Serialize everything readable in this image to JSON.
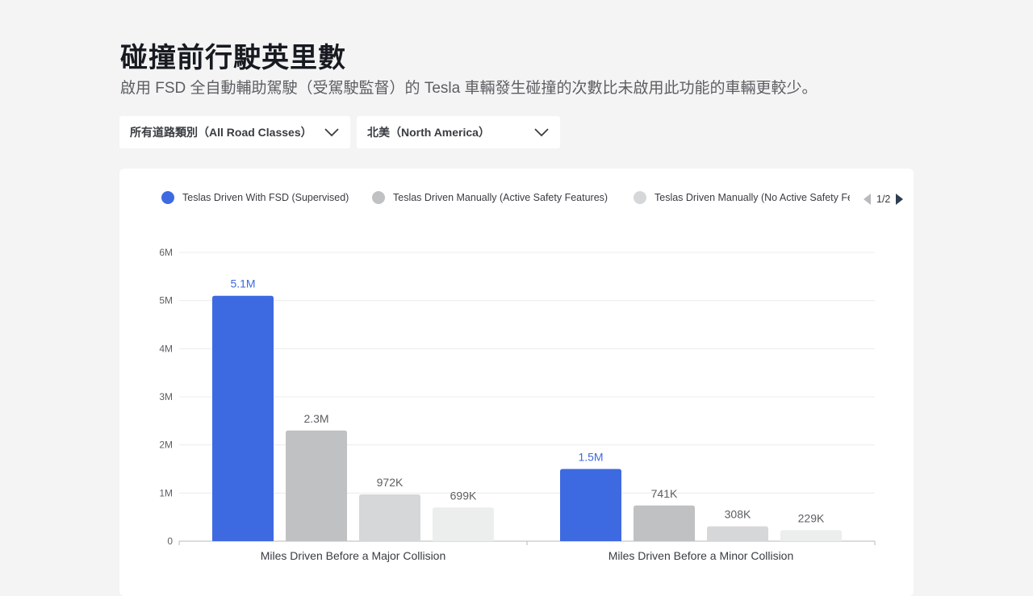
{
  "header": {
    "title": "碰撞前行駛英里數",
    "subtitle": "啟用 FSD 全自動輔助駕駛（受駕駛監督）的 Tesla 車輛發生碰撞的次數比未啟用此功能的車輛更較少。"
  },
  "filters": {
    "road_class": {
      "selected": "所有道路類別（All Road Classes）"
    },
    "region": {
      "selected": "北美（North America）"
    }
  },
  "legend": {
    "items": [
      {
        "label": "Teslas Driven With FSD (Supervised)",
        "color": "#3e6ae1"
      },
      {
        "label": "Teslas Driven Manually (Active Safety Features)",
        "color": "#c0c1c2"
      },
      {
        "label": "Teslas Driven Manually (No Active Safety Features)",
        "color": "#d6d7d8"
      }
    ],
    "page_indicator": "1/2",
    "prev_icon": "caret-left-icon",
    "next_icon": "caret-right-icon"
  },
  "chart_data": {
    "type": "bar",
    "categories": [
      "Miles Driven Before a Major Collision",
      "Miles Driven Before a Minor Collision"
    ],
    "series": [
      {
        "name": "Teslas Driven With FSD (Supervised)",
        "values": [
          5100000,
          1500000
        ],
        "labels": [
          "5.1M",
          "1.5M"
        ],
        "color": "#3e6ae1",
        "label_color": "#3e6ae1"
      },
      {
        "name": "Teslas Driven Manually (Active Safety Features)",
        "values": [
          2300000,
          741000
        ],
        "labels": [
          "2.3M",
          "741K"
        ],
        "color": "#c0c1c2",
        "label_color": "#5c5e62"
      },
      {
        "name": "Teslas Driven Manually (No Active Safety Features)",
        "values": [
          972000,
          308000
        ],
        "labels": [
          "972K",
          "308K"
        ],
        "color": "#d6d7d8",
        "label_color": "#5c5e62"
      },
      {
        "name": "",
        "values": [
          699000,
          229000
        ],
        "labels": [
          "699K",
          "229K"
        ],
        "color": "#eceded",
        "label_color": "#5c5e62"
      }
    ],
    "y_ticks": [
      {
        "value": 0,
        "label": "0"
      },
      {
        "value": 1000000,
        "label": "1M"
      },
      {
        "value": 2000000,
        "label": "2M"
      },
      {
        "value": 3000000,
        "label": "3M"
      },
      {
        "value": 4000000,
        "label": "4M"
      },
      {
        "value": 5000000,
        "label": "5M"
      },
      {
        "value": 6000000,
        "label": "6M"
      }
    ],
    "ylim": [
      0,
      6000000
    ],
    "grid": true,
    "legend_position": "top"
  }
}
